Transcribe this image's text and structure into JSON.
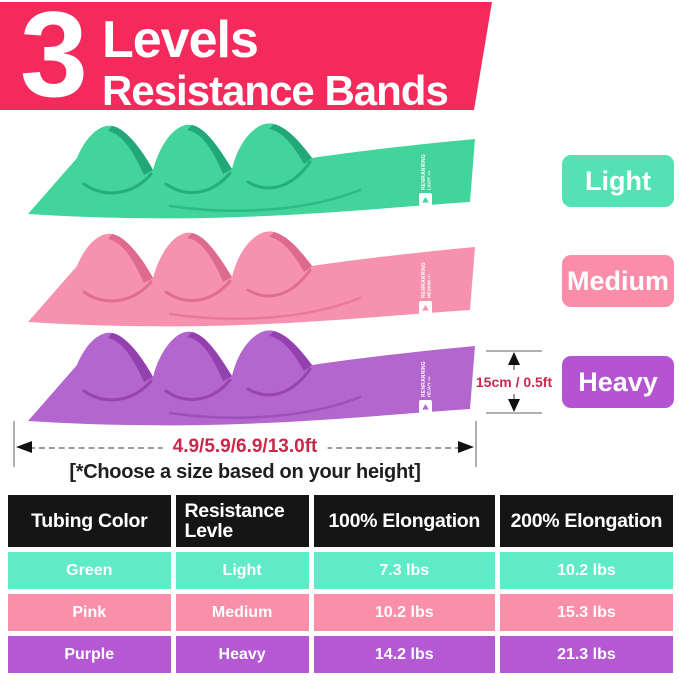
{
  "header": {
    "big_number": "3",
    "title_line1": "Levels",
    "title_line2": "Resistance Bands",
    "bg_color": "#F32A5B"
  },
  "bands": [
    {
      "name": "green band",
      "color_main": "#42D49A",
      "color_shade": "#22A878",
      "watermark_brand": "RENRANRING",
      "watermark_level": "LIGHT ▪▪▪"
    },
    {
      "name": "pink band",
      "color_main": "#F692AF",
      "color_shade": "#DE6A90",
      "watermark_brand": "RENRANRING",
      "watermark_level": "MEDIUM ▪▪▪"
    },
    {
      "name": "purple band",
      "color_main": "#B266CE",
      "color_shade": "#9440AE",
      "watermark_brand": "RENRANRING",
      "watermark_level": "HEAVY ▪▪▪"
    }
  ],
  "badges": [
    {
      "label": "Light",
      "color": "#54E2B5"
    },
    {
      "label": "Medium",
      "color": "#FB8DA8"
    },
    {
      "label": "Heavy",
      "color": "#B454D3"
    }
  ],
  "annotations": {
    "height_label": "15cm / 0.5ft",
    "length_label": "4.9/5.9/6.9/13.0ft",
    "note": "[*Choose a size based on your height]",
    "accent_color": "#C9284A"
  },
  "table": {
    "headers": [
      "Tubing Color",
      "Resistance Levle",
      "100% Elongation",
      "200% Elongation"
    ],
    "header_bg": "#151515",
    "rows": [
      {
        "color_name": "Green",
        "level": "Light",
        "e100": "7.3 lbs",
        "e200": "10.2 lbs",
        "bg": "#5FEAC8"
      },
      {
        "color_name": "Pink",
        "level": "Medium",
        "e100": "10.2 lbs",
        "e200": "15.3 lbs",
        "bg": "#FA8FA9"
      },
      {
        "color_name": "Purple",
        "level": "Heavy",
        "e100": "14.2 lbs",
        "e200": "21.3 lbs",
        "bg": "#B459D3"
      }
    ]
  }
}
